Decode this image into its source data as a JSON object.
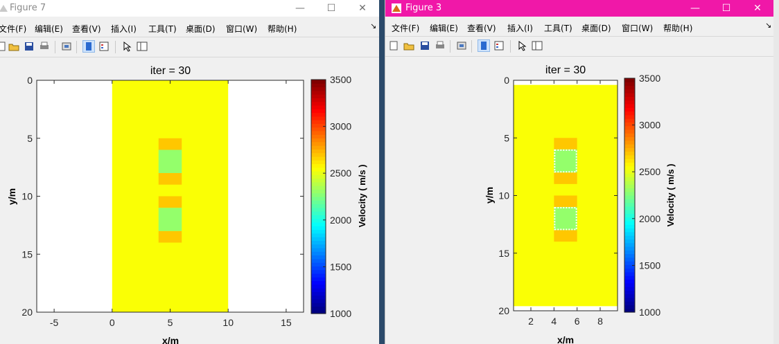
{
  "left": {
    "title": "Figure 7",
    "menu": [
      "文件(F)",
      "编辑(E)",
      "查看(V)",
      "插入(I)",
      "工具(T)",
      "桌面(D)",
      "窗口(W)",
      "帮助(H)"
    ],
    "plot_title": "iter = 30",
    "xlabel": "x/m",
    "ylabel": "y/m",
    "colorbar_label": "Velocity ( m/s )"
  },
  "right": {
    "title": "Figure 3",
    "menu": [
      "文件(F)",
      "编辑(E)",
      "查看(V)",
      "插入(I)",
      "工具(T)",
      "桌面(D)",
      "窗口(W)",
      "帮助(H)"
    ],
    "plot_title": "iter = 30",
    "xlabel": "x/m",
    "ylabel": "y/m",
    "colorbar_label": "Velocity ( m/s )"
  },
  "controls": {
    "minimize": "—",
    "maximize": "☐",
    "close": "✕"
  },
  "colors": {
    "pink_titlebar": "#f018a8",
    "field": "#e6ff1c"
  },
  "chart_data": [
    {
      "type": "heatmap",
      "title": "iter = 30",
      "xlabel": "x/m",
      "ylabel": "y/m",
      "xlim": [
        -6.5,
        16.5
      ],
      "ylim": [
        20,
        0
      ],
      "xticks": [
        -5,
        0,
        5,
        10,
        15
      ],
      "yticks": [
        0,
        5,
        10,
        15,
        20
      ],
      "data_extent_x": [
        0,
        10
      ],
      "data_extent_y": [
        0,
        20
      ],
      "background_velocity": 2550,
      "anomalies": [
        {
          "x": [
            4,
            6
          ],
          "y": [
            6,
            8
          ],
          "velocity": 2300
        },
        {
          "x": [
            4,
            6
          ],
          "y": [
            11,
            13
          ],
          "velocity": 2300
        }
      ],
      "colorbar": {
        "label": "Velocity ( m/s )",
        "range": [
          1000,
          3500
        ],
        "ticks": [
          1000,
          1500,
          2000,
          2500,
          3000,
          3500
        ]
      }
    },
    {
      "type": "heatmap",
      "title": "iter = 30",
      "xlabel": "x/m",
      "ylabel": "y/m",
      "xlim": [
        0.5,
        9.5
      ],
      "ylim": [
        20,
        0
      ],
      "xticks": [
        2,
        4,
        6,
        8
      ],
      "yticks": [
        0,
        5,
        10,
        15,
        20
      ],
      "background_velocity": 2550,
      "anomalies": [
        {
          "x": [
            4,
            6
          ],
          "y": [
            6,
            8
          ],
          "velocity": 2300
        },
        {
          "x": [
            4,
            6
          ],
          "y": [
            11,
            13
          ],
          "velocity": 2300
        }
      ],
      "colorbar": {
        "label": "Velocity ( m/s )",
        "range": [
          1000,
          3500
        ],
        "ticks": [
          1000,
          1500,
          2000,
          2500,
          3000,
          3500
        ]
      }
    }
  ]
}
